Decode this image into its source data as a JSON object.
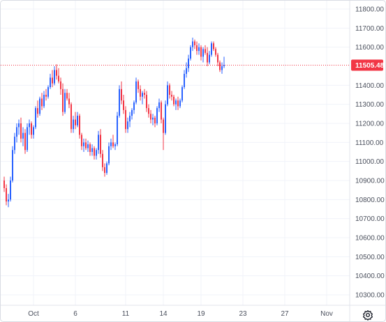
{
  "chart_data": {
    "type": "candlestick",
    "symbol_current_price": 11505.48,
    "price_label": "11505.48",
    "ylim": [
      10200,
      11900
    ],
    "y_ticks": [
      {
        "value": 11800,
        "label": "11800.00"
      },
      {
        "value": 11700,
        "label": "11700.00"
      },
      {
        "value": 11600,
        "label": "11600.00"
      },
      {
        "value": 11400,
        "label": "11400.00"
      },
      {
        "value": 11300,
        "label": "11300.00"
      },
      {
        "value": 11200,
        "label": "11200.00"
      },
      {
        "value": 11100,
        "label": "11100.00"
      },
      {
        "value": 11000,
        "label": "11000.00"
      },
      {
        "value": 10900,
        "label": "10900.00"
      },
      {
        "value": 10800,
        "label": "10800.00"
      },
      {
        "value": 10700,
        "label": "10700.00"
      },
      {
        "value": 10600,
        "label": "10600.00"
      },
      {
        "value": 10500,
        "label": "10500.00"
      },
      {
        "value": 10400,
        "label": "10400.00"
      },
      {
        "value": 10300,
        "label": "10300.00"
      }
    ],
    "x_ticks": [
      {
        "index": 14,
        "label": "Oct"
      },
      {
        "index": 34,
        "label": "6"
      },
      {
        "index": 58,
        "label": "11"
      },
      {
        "index": 76,
        "label": "14"
      },
      {
        "index": 94,
        "label": "19"
      },
      {
        "index": 114,
        "label": "23"
      },
      {
        "index": 134,
        "label": "27"
      },
      {
        "index": 154,
        "label": "Nov"
      }
    ],
    "candles_ohlc": [
      [
        10900,
        10920,
        10840,
        10860
      ],
      [
        10860,
        10880,
        10770,
        10790
      ],
      [
        10790,
        10830,
        10760,
        10800
      ],
      [
        10800,
        10920,
        10790,
        10900
      ],
      [
        10900,
        11080,
        10890,
        11060
      ],
      [
        11060,
        11150,
        11040,
        11130
      ],
      [
        11130,
        11200,
        11100,
        11180
      ],
      [
        11180,
        11220,
        11140,
        11200
      ],
      [
        11200,
        11230,
        11100,
        11120
      ],
      [
        11120,
        11180,
        11080,
        11150
      ],
      [
        11150,
        11170,
        11040,
        11060
      ],
      [
        11060,
        11200,
        11050,
        11180
      ],
      [
        11180,
        11220,
        11140,
        11200
      ],
      [
        11200,
        11210,
        11120,
        11140
      ],
      [
        11140,
        11190,
        11120,
        11180
      ],
      [
        11180,
        11290,
        11170,
        11280
      ],
      [
        11280,
        11320,
        11230,
        11250
      ],
      [
        11250,
        11340,
        11240,
        11330
      ],
      [
        11330,
        11360,
        11270,
        11290
      ],
      [
        11290,
        11370,
        11280,
        11350
      ],
      [
        11350,
        11380,
        11320,
        11340
      ],
      [
        11340,
        11400,
        11330,
        11390
      ],
      [
        11390,
        11460,
        11380,
        11440
      ],
      [
        11440,
        11480,
        11390,
        11410
      ],
      [
        11410,
        11500,
        11400,
        11480
      ],
      [
        11480,
        11510,
        11430,
        11450
      ],
      [
        11450,
        11490,
        11410,
        11420
      ],
      [
        11420,
        11440,
        11350,
        11380
      ],
      [
        11380,
        11410,
        11240,
        11260
      ],
      [
        11260,
        11380,
        11250,
        11360
      ],
      [
        11360,
        11380,
        11320,
        11330
      ],
      [
        11330,
        11360,
        11280,
        11300
      ],
      [
        11300,
        11310,
        11150,
        11170
      ],
      [
        11170,
        11240,
        11150,
        11220
      ],
      [
        11220,
        11260,
        11170,
        11190
      ],
      [
        11190,
        11260,
        11180,
        11240
      ],
      [
        11240,
        11250,
        11120,
        11140
      ],
      [
        11140,
        11150,
        11060,
        11080
      ],
      [
        11080,
        11120,
        11050,
        11100
      ],
      [
        11100,
        11120,
        11060,
        11070
      ],
      [
        11070,
        11110,
        11050,
        11090
      ],
      [
        11090,
        11100,
        11030,
        11050
      ],
      [
        11050,
        11090,
        11030,
        11070
      ],
      [
        11070,
        11080,
        11010,
        11030
      ],
      [
        11030,
        11070,
        11010,
        11060
      ],
      [
        11060,
        11160,
        11040,
        11140
      ],
      [
        11140,
        11170,
        11020,
        11040
      ],
      [
        11040,
        11060,
        10950,
        10970
      ],
      [
        10970,
        10990,
        10920,
        10940
      ],
      [
        10940,
        11000,
        10930,
        10990
      ],
      [
        10990,
        11100,
        10980,
        11080
      ],
      [
        11080,
        11120,
        11060,
        11100
      ],
      [
        11100,
        11140,
        11070,
        11080
      ],
      [
        11080,
        11100,
        11060,
        11090
      ],
      [
        11090,
        11260,
        11080,
        11240
      ],
      [
        11240,
        11400,
        11230,
        11380
      ],
      [
        11380,
        11420,
        11300,
        11320
      ],
      [
        11320,
        11350,
        11250,
        11270
      ],
      [
        11270,
        11290,
        11150,
        11170
      ],
      [
        11170,
        11230,
        11150,
        11210
      ],
      [
        11210,
        11260,
        11180,
        11240
      ],
      [
        11240,
        11280,
        11220,
        11270
      ],
      [
        11270,
        11320,
        11250,
        11310
      ],
      [
        11310,
        11440,
        11300,
        11420
      ],
      [
        11420,
        11430,
        11360,
        11380
      ],
      [
        11380,
        11400,
        11320,
        11340
      ],
      [
        11340,
        11370,
        11300,
        11360
      ],
      [
        11360,
        11380,
        11330,
        11350
      ],
      [
        11350,
        11370,
        11260,
        11280
      ],
      [
        11280,
        11300,
        11230,
        11250
      ],
      [
        11250,
        11270,
        11200,
        11220
      ],
      [
        11220,
        11250,
        11190,
        11230
      ],
      [
        11230,
        11240,
        11180,
        11200
      ],
      [
        11200,
        11290,
        11190,
        11280
      ],
      [
        11280,
        11330,
        11260,
        11310
      ],
      [
        11310,
        11320,
        11200,
        11220
      ],
      [
        11220,
        11230,
        11060,
        11150
      ],
      [
        11150,
        11320,
        11140,
        11300
      ],
      [
        11300,
        11420,
        11290,
        11400
      ],
      [
        11400,
        11410,
        11330,
        11350
      ],
      [
        11350,
        11370,
        11320,
        11340
      ],
      [
        11340,
        11350,
        11290,
        11300
      ],
      [
        11300,
        11330,
        11270,
        11320
      ],
      [
        11320,
        11340,
        11270,
        11290
      ],
      [
        11290,
        11330,
        11280,
        11320
      ],
      [
        11320,
        11400,
        11310,
        11390
      ],
      [
        11390,
        11480,
        11380,
        11460
      ],
      [
        11460,
        11520,
        11440,
        11490
      ],
      [
        11490,
        11560,
        11470,
        11540
      ],
      [
        11540,
        11610,
        11530,
        11600
      ],
      [
        11600,
        11650,
        11580,
        11630
      ],
      [
        11630,
        11640,
        11590,
        11610
      ],
      [
        11610,
        11630,
        11560,
        11580
      ],
      [
        11580,
        11620,
        11560,
        11600
      ],
      [
        11600,
        11610,
        11530,
        11550
      ],
      [
        11550,
        11600,
        11520,
        11590
      ],
      [
        11590,
        11610,
        11560,
        11570
      ],
      [
        11570,
        11600,
        11500,
        11520
      ],
      [
        11520,
        11580,
        11510,
        11560
      ],
      [
        11560,
        11630,
        11550,
        11620
      ],
      [
        11620,
        11630,
        11580,
        11590
      ],
      [
        11590,
        11600,
        11550,
        11560
      ],
      [
        11560,
        11570,
        11500,
        11520
      ],
      [
        11520,
        11530,
        11470,
        11480
      ],
      [
        11480,
        11520,
        11460,
        11500
      ],
      [
        11500,
        11550,
        11490,
        11505
      ]
    ],
    "up_color": "#2962ff",
    "down_color": "#f23645",
    "grid": true,
    "price_line_color": "#f23645"
  },
  "toolbar": {
    "settings_icon": "gear-icon"
  }
}
